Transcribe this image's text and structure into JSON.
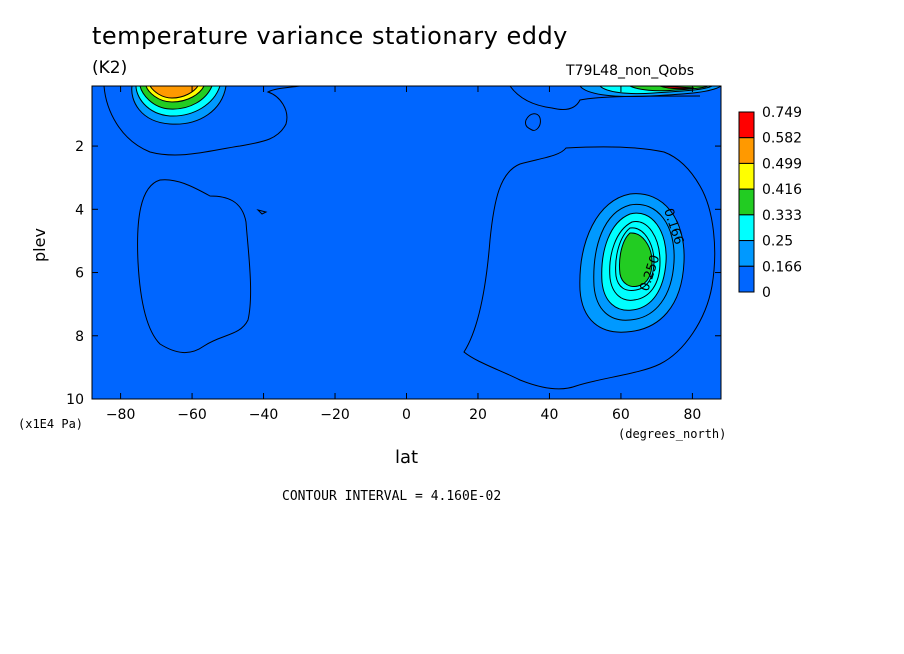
{
  "chart_data": {
    "type": "contour",
    "title": "temperature variance stationary eddy",
    "units": "(K2)",
    "dataset": "T79L48_non_Qobs",
    "xlabel": "lat",
    "ylabel": "plev",
    "x_tick_unit": "(degrees_north)",
    "y_tick_unit": "(x1E4 Pa)",
    "xlim": [
      -88,
      88
    ],
    "ylim": [
      10,
      0.1
    ],
    "x_ticks": [
      -80,
      -60,
      -40,
      -20,
      0,
      20,
      40,
      60,
      80
    ],
    "y_ticks": [
      2,
      4,
      6,
      8,
      10
    ],
    "contour_interval_text": "CONTOUR INTERVAL = 4.160E-02",
    "contour_labels": [
      "0.166",
      "0.250"
    ],
    "colorbar": {
      "levels": [
        "0.749",
        "0.582",
        "0.499",
        "0.416",
        "0.333",
        "0.25",
        "0.166",
        "0"
      ],
      "colors": [
        "#ff0000",
        "#ff9900",
        "#ffff00",
        "#22cc22",
        "#00ffff",
        "#0099ff",
        "#0066ff"
      ]
    },
    "background_color": "#0066ff",
    "features": [
      {
        "name": "southern upper maximum",
        "lat": -66,
        "plev": 0.3,
        "max_level": "0.582"
      },
      {
        "name": "northern upper maximum",
        "lat": 70,
        "plev": 0.1,
        "max_level": "0.749"
      },
      {
        "name": "northern mid-level maximum",
        "lat": 63,
        "plev": 5.5,
        "max_level": "0.333"
      }
    ]
  }
}
